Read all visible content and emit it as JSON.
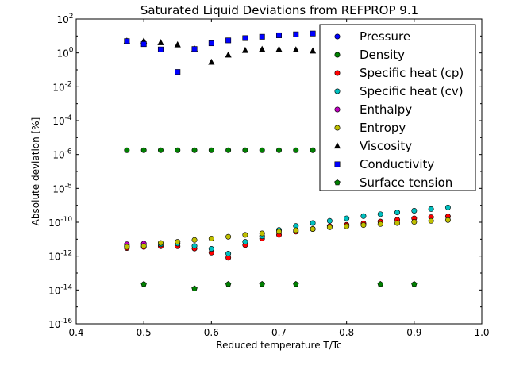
{
  "chart_data": {
    "type": "scatter",
    "title": "Saturated Liquid Deviations from REFPROP 9.1",
    "xlabel": "Reduced temperature T/Tc",
    "ylabel": "Absolute deviation [%]",
    "xlim": [
      0.4,
      1.0
    ],
    "ylim_log10": [
      -16,
      2
    ],
    "yscale": "log",
    "x_ticks": [
      0.4,
      0.5,
      0.6,
      0.7,
      0.8,
      0.9,
      1.0
    ],
    "x_tick_labels": [
      "0.4",
      "0.5",
      "0.6",
      "0.7",
      "0.8",
      "0.9",
      "1.0"
    ],
    "y_tick_exponents": [
      2,
      0,
      -2,
      -4,
      -6,
      -8,
      -10,
      -12,
      -14,
      -16
    ],
    "y_tick_labels": [
      "10",
      "10",
      "10",
      "10",
      "10",
      "10",
      "10",
      "10",
      "10",
      "10"
    ],
    "y_tick_sups": [
      "2",
      "0",
      "-2",
      "-4",
      "-6",
      "-8",
      "-10",
      "-12",
      "-14",
      "-16"
    ],
    "grid": false,
    "legend_position": "top-right",
    "series": [
      {
        "name": "Pressure",
        "color": "#0000ff",
        "marker": "circle",
        "x": [],
        "y": []
      },
      {
        "name": "Density",
        "color": "#008000",
        "marker": "circle",
        "x": [
          0.475,
          0.5,
          0.525,
          0.55,
          0.575,
          0.6,
          0.625,
          0.65,
          0.675,
          0.7,
          0.725,
          0.75
        ],
        "y": [
          1.8e-06,
          1.8e-06,
          1.8e-06,
          1.8e-06,
          1.8e-06,
          1.8e-06,
          1.8e-06,
          1.8e-06,
          1.8e-06,
          1.8e-06,
          1.8e-06,
          1.8e-06
        ]
      },
      {
        "name": "Specific heat (cp)",
        "color": "#ff0000",
        "marker": "circle",
        "x": [
          0.475,
          0.5,
          0.525,
          0.55,
          0.575,
          0.6,
          0.625,
          0.65,
          0.675,
          0.7,
          0.725,
          0.75,
          0.775,
          0.8,
          0.825,
          0.85,
          0.875,
          0.9,
          0.925,
          0.95
        ],
        "y": [
          3e-12,
          3.5e-12,
          3.8e-12,
          3.8e-12,
          2.8e-12,
          1.6e-12,
          8e-13,
          4.5e-12,
          1.1e-11,
          1.8e-11,
          2.8e-11,
          4e-11,
          5.8e-11,
          7e-11,
          8.5e-11,
          1.1e-10,
          1.4e-10,
          1.7e-10,
          2e-10,
          2.2e-10
        ]
      },
      {
        "name": "Specific heat (cv)",
        "color": "#00bfbf",
        "marker": "circle",
        "x": [
          0.475,
          0.5,
          0.525,
          0.55,
          0.575,
          0.6,
          0.625,
          0.65,
          0.675,
          0.7,
          0.725,
          0.75,
          0.775,
          0.8,
          0.825,
          0.85,
          0.875,
          0.9,
          0.925,
          0.95
        ],
        "y": [
          4e-12,
          5e-12,
          5e-12,
          5.5e-12,
          4e-12,
          2.7e-12,
          1.4e-12,
          7e-12,
          1.5e-11,
          3.5e-11,
          6e-11,
          9e-11,
          1.2e-10,
          1.7e-10,
          2.3e-10,
          3e-10,
          3.8e-10,
          4.8e-10,
          6e-10,
          7.5e-10
        ]
      },
      {
        "name": "Enthalpy",
        "color": "#bf00bf",
        "marker": "circle",
        "x": [
          0.475,
          0.5
        ],
        "y": [
          5e-12,
          5.5e-12
        ]
      },
      {
        "name": "Entropy",
        "color": "#bfbf00",
        "marker": "circle",
        "x": [
          0.475,
          0.5,
          0.525,
          0.55,
          0.575,
          0.6,
          0.625,
          0.65,
          0.675,
          0.7,
          0.725,
          0.75,
          0.775,
          0.8,
          0.825,
          0.85,
          0.875,
          0.9,
          0.925,
          0.95
        ],
        "y": [
          3.5e-12,
          4e-12,
          6e-12,
          7e-12,
          9e-12,
          1.1e-11,
          1.4e-11,
          1.8e-11,
          2.2e-11,
          2.8e-11,
          3.4e-11,
          4e-11,
          5e-11,
          5.8e-11,
          6.8e-11,
          7.8e-11,
          9e-11,
          1.05e-10,
          1.2e-10,
          1.35e-10
        ]
      },
      {
        "name": "Viscosity",
        "color": "#000000",
        "marker": "triangle",
        "x": [
          0.475,
          0.5,
          0.525,
          0.55,
          0.575,
          0.6,
          0.625,
          0.65,
          0.675,
          0.7,
          0.725,
          0.75
        ],
        "y": [
          5,
          5,
          4,
          3,
          1.7,
          0.28,
          0.75,
          1.4,
          1.6,
          1.6,
          1.5,
          1.3
        ]
      },
      {
        "name": "Conductivity",
        "color": "#0000ff",
        "marker": "square",
        "x": [
          0.475,
          0.5,
          0.525,
          0.55,
          0.575,
          0.6,
          0.625,
          0.65,
          0.675,
          0.7,
          0.725,
          0.75
        ],
        "y": [
          5,
          3.3,
          1.6,
          0.075,
          1.7,
          3.7,
          5.5,
          7.5,
          9,
          11,
          12.5,
          14
        ]
      },
      {
        "name": "Surface tension",
        "color": "#008000",
        "marker": "pentagon",
        "x": [
          0.5,
          0.575,
          0.625,
          0.675,
          0.725,
          0.85,
          0.9
        ],
        "y": [
          2.2e-14,
          1.2e-14,
          2.2e-14,
          2.2e-14,
          2.2e-14,
          2.2e-14,
          2.2e-14
        ]
      }
    ]
  }
}
